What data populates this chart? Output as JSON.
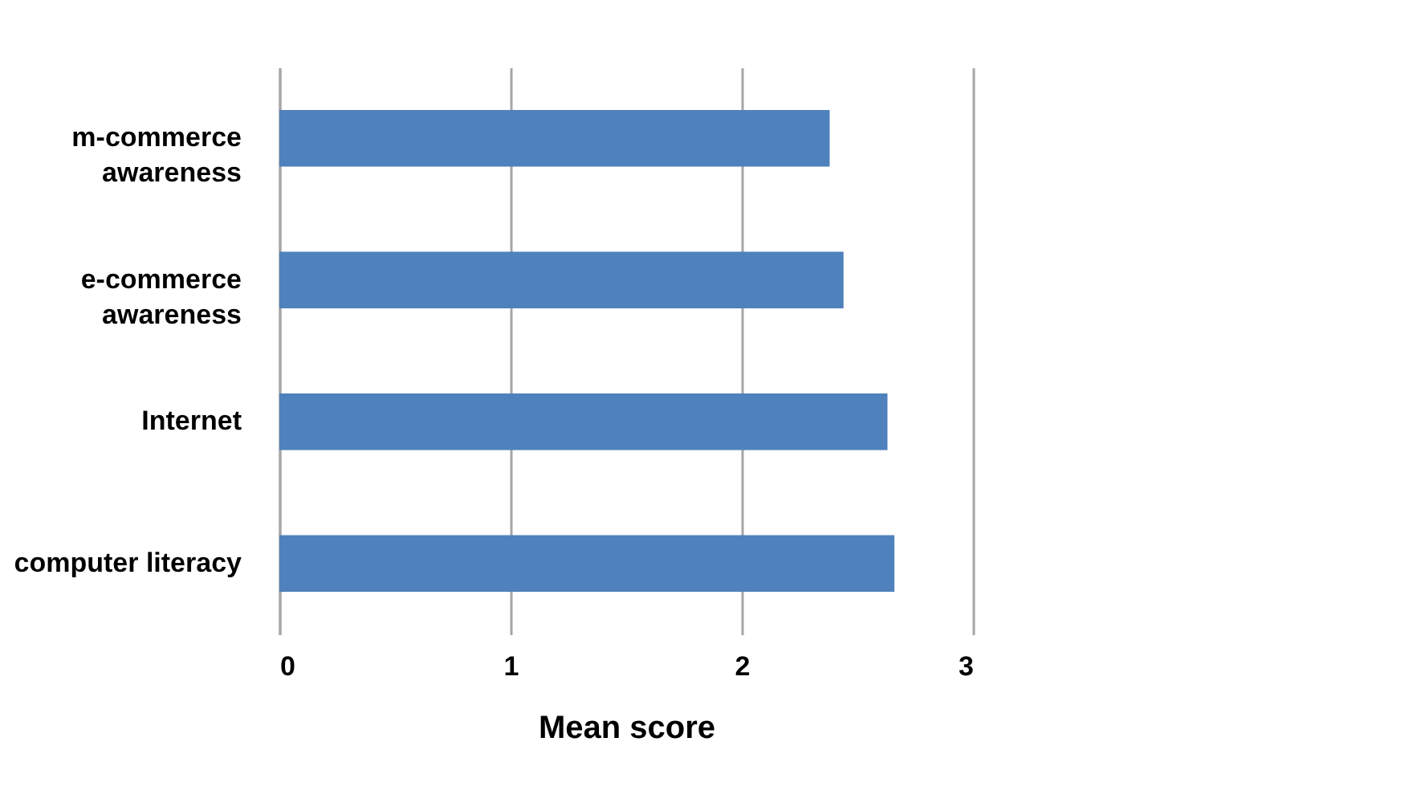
{
  "chart_data": {
    "type": "bar",
    "orientation": "horizontal",
    "xlabel": "Mean score",
    "categories": [
      "m-commerce awareness",
      "e-commerce awareness",
      "Internet",
      "computer literacy"
    ],
    "values": [
      2.38,
      2.44,
      2.63,
      2.66
    ],
    "color": "#4f81bd",
    "xlim": [
      0,
      3
    ],
    "xticks": [
      0,
      1,
      2,
      3
    ],
    "grid": "x"
  }
}
